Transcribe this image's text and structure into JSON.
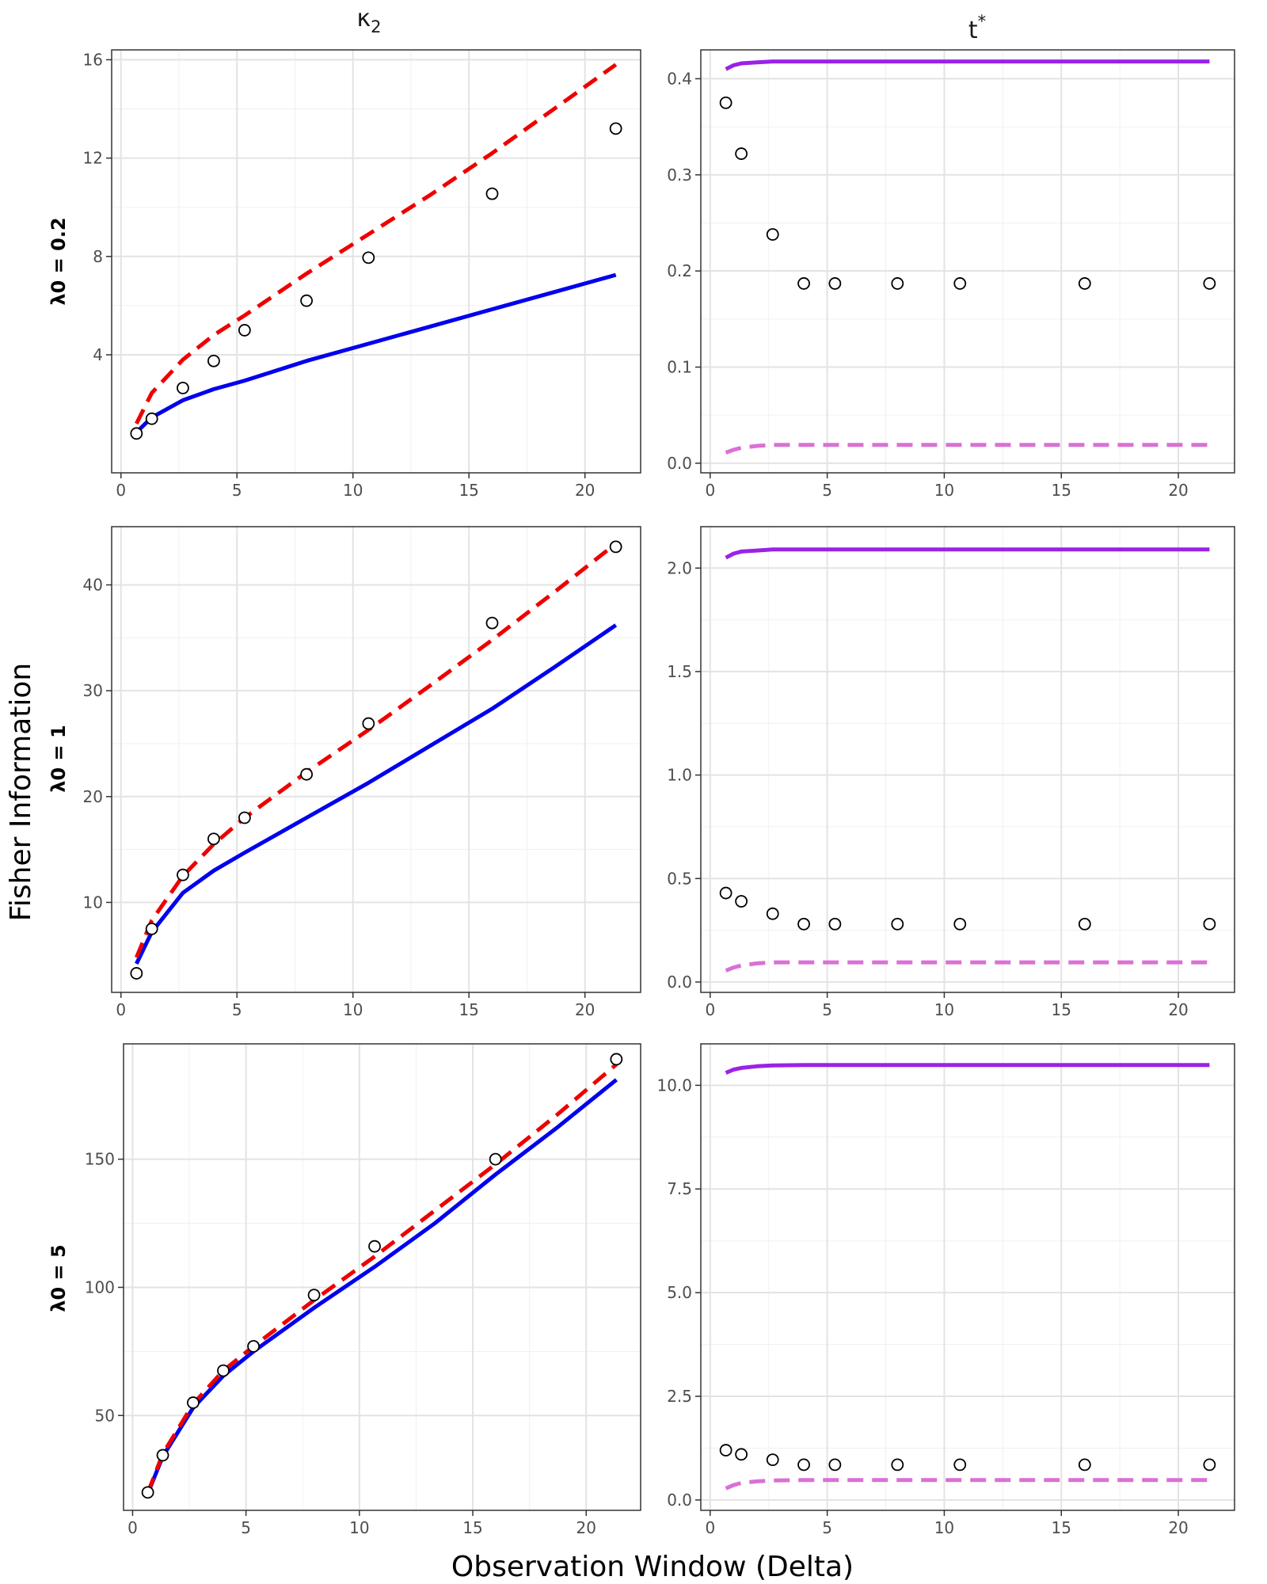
{
  "figure": {
    "xlabel": "Observation Window (Delta)",
    "ylabel": "Fisher Information",
    "columns": [
      {
        "base": "κ",
        "sub": "2",
        "sup": ""
      },
      {
        "base": "t",
        "sub": "",
        "sup": "*"
      }
    ],
    "rows": [
      "λ0 = 0.2",
      "λ0 = 1",
      "λ0 = 5"
    ]
  },
  "chart_data": [
    {
      "type": "line",
      "row": "λ0 = 0.2",
      "column": "κ2",
      "xlim": [
        -0.4,
        22.4
      ],
      "ylim": [
        -0.8,
        16.4
      ],
      "xticks": [
        0,
        5,
        10,
        15,
        20
      ],
      "yticks": [
        4,
        8,
        12,
        16
      ],
      "tick_decimals": 0,
      "series": [
        {
          "style": "solid",
          "color": "#0000ee",
          "x": [
            0.67,
            1.33,
            2.67,
            4.0,
            5.33,
            8.0,
            10.67,
            13.33,
            16.0,
            18.67,
            21.33
          ],
          "y": [
            0.85,
            1.45,
            2.15,
            2.6,
            2.95,
            3.75,
            4.45,
            5.15,
            5.85,
            6.55,
            7.25
          ]
        },
        {
          "style": "dashed",
          "color": "#ee0000",
          "x": [
            0.67,
            1.33,
            2.67,
            4.0,
            5.33,
            8.0,
            10.67,
            13.33,
            16.0,
            18.67,
            21.33
          ],
          "y": [
            1.2,
            2.45,
            3.8,
            4.8,
            5.6,
            7.3,
            8.9,
            10.5,
            12.2,
            14.0,
            15.8
          ]
        }
      ],
      "points": {
        "x": [
          0.67,
          1.33,
          2.67,
          4.0,
          5.33,
          8.0,
          10.67,
          16.0,
          21.33
        ],
        "y": [
          0.8,
          1.4,
          2.65,
          3.75,
          5.0,
          6.2,
          7.95,
          10.55,
          13.2
        ]
      }
    },
    {
      "type": "line",
      "row": "λ0 = 0.2",
      "column": "t*",
      "xlim": [
        -0.4,
        22.4
      ],
      "ylim": [
        -0.01,
        0.43
      ],
      "xticks": [
        0,
        5,
        10,
        15,
        20
      ],
      "yticks": [
        0.0,
        0.1,
        0.2,
        0.3,
        0.4
      ],
      "tick_decimals": 1,
      "series": [
        {
          "style": "solid",
          "color": "#9a22e8",
          "x": [
            0.67,
            1.0,
            1.33,
            2.0,
            2.67,
            4.0,
            8.0,
            16.0,
            21.33
          ],
          "y": [
            0.41,
            0.414,
            0.416,
            0.417,
            0.418,
            0.418,
            0.418,
            0.418,
            0.418
          ]
        },
        {
          "style": "dashed",
          "color": "#da70d6",
          "x": [
            0.67,
            1.0,
            1.33,
            2.0,
            2.67,
            4.0,
            8.0,
            16.0,
            21.33
          ],
          "y": [
            0.011,
            0.014,
            0.016,
            0.018,
            0.019,
            0.019,
            0.019,
            0.019,
            0.019
          ]
        }
      ],
      "points": {
        "x": [
          0.67,
          1.33,
          2.67,
          4.0,
          5.33,
          8.0,
          10.67,
          16.0,
          21.33
        ],
        "y": [
          0.375,
          0.322,
          0.238,
          0.187,
          0.187,
          0.187,
          0.187,
          0.187,
          0.187
        ]
      }
    },
    {
      "type": "line",
      "row": "λ0 = 1",
      "column": "κ2",
      "xlim": [
        -0.4,
        22.4
      ],
      "ylim": [
        1.5,
        45.5
      ],
      "xticks": [
        0,
        5,
        10,
        15,
        20
      ],
      "yticks": [
        10,
        20,
        30,
        40
      ],
      "tick_decimals": 0,
      "series": [
        {
          "style": "solid",
          "color": "#0000ee",
          "x": [
            0.67,
            1.33,
            2.67,
            4.0,
            5.33,
            8.0,
            10.67,
            13.33,
            16.0,
            18.67,
            21.33
          ],
          "y": [
            4.2,
            7.2,
            10.9,
            13.0,
            14.7,
            18.0,
            21.3,
            24.8,
            28.3,
            32.2,
            36.2
          ]
        },
        {
          "style": "dashed",
          "color": "#ee0000",
          "x": [
            0.67,
            1.33,
            2.67,
            4.0,
            5.33,
            8.0,
            10.67,
            13.33,
            16.0,
            18.67,
            21.33
          ],
          "y": [
            4.8,
            8.3,
            12.5,
            15.5,
            18.0,
            22.3,
            26.3,
            30.5,
            34.8,
            39.3,
            43.9
          ]
        }
      ],
      "points": {
        "x": [
          0.67,
          1.33,
          2.67,
          4.0,
          5.33,
          8.0,
          10.67,
          16.0,
          21.33
        ],
        "y": [
          3.3,
          7.5,
          12.6,
          16.0,
          18.0,
          22.1,
          26.9,
          36.4,
          43.6
        ]
      }
    },
    {
      "type": "line",
      "row": "λ0 = 1",
      "column": "t*",
      "xlim": [
        -0.4,
        22.4
      ],
      "ylim": [
        -0.05,
        2.2
      ],
      "xticks": [
        0,
        5,
        10,
        15,
        20
      ],
      "yticks": [
        0.0,
        0.5,
        1.0,
        1.5,
        2.0
      ],
      "tick_decimals": 1,
      "series": [
        {
          "style": "solid",
          "color": "#9a22e8",
          "x": [
            0.67,
            1.0,
            1.33,
            2.0,
            2.67,
            4.0,
            8.0,
            16.0,
            21.33
          ],
          "y": [
            2.05,
            2.07,
            2.08,
            2.085,
            2.09,
            2.09,
            2.09,
            2.09,
            2.09
          ]
        },
        {
          "style": "dashed",
          "color": "#da70d6",
          "x": [
            0.67,
            1.0,
            1.33,
            2.0,
            2.67,
            4.0,
            8.0,
            16.0,
            21.33
          ],
          "y": [
            0.055,
            0.07,
            0.08,
            0.09,
            0.095,
            0.095,
            0.095,
            0.095,
            0.095
          ]
        }
      ],
      "points": {
        "x": [
          0.67,
          1.33,
          2.67,
          4.0,
          5.33,
          8.0,
          10.67,
          16.0,
          21.33
        ],
        "y": [
          0.43,
          0.39,
          0.33,
          0.28,
          0.28,
          0.28,
          0.28,
          0.28,
          0.28
        ]
      }
    },
    {
      "type": "line",
      "row": "λ0 = 5",
      "column": "κ2",
      "xlim": [
        -0.4,
        22.4
      ],
      "ylim": [
        13,
        195
      ],
      "xticks": [
        0,
        5,
        10,
        15,
        20
      ],
      "yticks": [
        50,
        100,
        150
      ],
      "tick_decimals": 0,
      "series": [
        {
          "style": "solid",
          "color": "#0000ee",
          "x": [
            0.67,
            1.33,
            2.67,
            4.0,
            5.33,
            8.0,
            10.67,
            13.33,
            16.0,
            18.67,
            21.33
          ],
          "y": [
            19.5,
            34.0,
            53.0,
            65.5,
            75.0,
            92.0,
            108.0,
            125.0,
            144.0,
            162.0,
            181.0
          ]
        },
        {
          "style": "dashed",
          "color": "#ee0000",
          "x": [
            0.67,
            1.33,
            2.67,
            4.0,
            5.33,
            8.0,
            10.67,
            13.33,
            16.0,
            18.67,
            21.33
          ],
          "y": [
            19.8,
            35.0,
            54.5,
            67.5,
            77.0,
            95.0,
            112.0,
            130.0,
            148.0,
            167.0,
            187.0
          ]
        }
      ],
      "points": {
        "x": [
          0.67,
          1.33,
          2.67,
          4.0,
          5.33,
          8.0,
          10.67,
          16.0,
          21.33
        ],
        "y": [
          20.0,
          34.5,
          55.0,
          67.5,
          77.0,
          97.0,
          116.0,
          150.0,
          189.0
        ]
      }
    },
    {
      "type": "line",
      "row": "λ0 = 5",
      "column": "t*",
      "xlim": [
        -0.4,
        22.4
      ],
      "ylim": [
        -0.25,
        11.0
      ],
      "xticks": [
        0,
        5,
        10,
        15,
        20
      ],
      "yticks": [
        0.0,
        2.5,
        5.0,
        7.5,
        10.0
      ],
      "tick_decimals": 1,
      "series": [
        {
          "style": "solid",
          "color": "#9a22e8",
          "x": [
            0.67,
            1.0,
            1.33,
            2.0,
            2.67,
            4.0,
            8.0,
            16.0,
            21.33
          ],
          "y": [
            10.3,
            10.38,
            10.42,
            10.46,
            10.48,
            10.49,
            10.49,
            10.49,
            10.49
          ]
        },
        {
          "style": "dashed",
          "color": "#da70d6",
          "x": [
            0.67,
            1.0,
            1.33,
            2.0,
            2.67,
            4.0,
            8.0,
            16.0,
            21.33
          ],
          "y": [
            0.28,
            0.36,
            0.41,
            0.45,
            0.47,
            0.48,
            0.48,
            0.48,
            0.48
          ]
        }
      ],
      "points": {
        "x": [
          0.67,
          1.33,
          2.67,
          4.0,
          5.33,
          8.0,
          10.67,
          16.0,
          21.33
        ],
        "y": [
          1.2,
          1.1,
          0.97,
          0.85,
          0.85,
          0.85,
          0.85,
          0.85,
          0.85
        ]
      }
    }
  ]
}
